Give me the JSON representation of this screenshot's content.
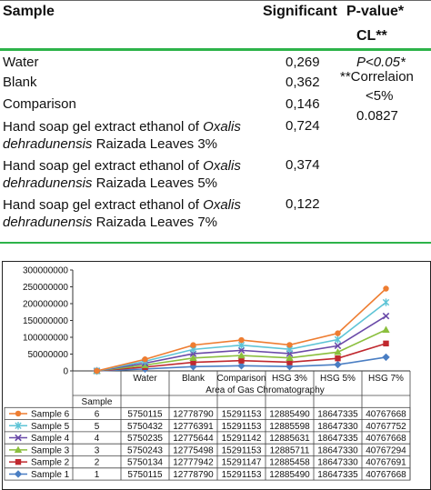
{
  "table": {
    "headers": [
      "Sample",
      "Significant",
      "P-value*",
      "CL**"
    ],
    "rows": [
      {
        "name": [
          "Water"
        ],
        "value": "0,269"
      },
      {
        "name": [
          "Blank"
        ],
        "value": "0,362"
      },
      {
        "name": [
          "Comparison"
        ],
        "value": "0,146"
      },
      {
        "name": [
          "Hand soap gel extract ethanol of ",
          "Oxalis",
          "dehradunensis",
          " Raizada Leaves 3%"
        ],
        "value": "0,724"
      },
      {
        "name": [
          "Hand soap gel extract ethanol of ",
          "Oxalis",
          "dehradunensis",
          " Raizada Leaves 5%"
        ],
        "value": "0,374"
      },
      {
        "name": [
          "Hand soap gel extract ethanol of ",
          "Oxalis",
          "dehradunensis",
          " Raizada Leaves 7%"
        ],
        "value": "0,122"
      }
    ],
    "pvalue_notes": [
      "P<0.05*",
      "**Correlaion",
      "<5%",
      "0.0827"
    ]
  },
  "chart_data": {
    "type": "line",
    "xlabel": "Area of Gas Chromatography",
    "ylabel": "",
    "ylim": [
      0,
      300000000
    ],
    "yticks": [
      "300000000",
      "250000000",
      "200000000",
      "150000000",
      "100000000",
      "50000000",
      "0"
    ],
    "categories": [
      "Sample",
      "Water",
      "Blank",
      "Comparison",
      "HSG 3%",
      "HSG 5%",
      "HSG 7%"
    ],
    "grid": false,
    "legend": "data-table-left",
    "series": [
      {
        "name": "Sample 6",
        "color": "#ee7d31",
        "marker": "circle",
        "table": [
          "6",
          "5750115",
          "12778790",
          "15291153",
          "12885490",
          "18647335",
          "40767668"
        ]
      },
      {
        "name": "Sample 5",
        "color": "#5ec4d6",
        "marker": "asterisk",
        "table": [
          "5",
          "5750432",
          "12776391",
          "15291153",
          "12885598",
          "18647330",
          "40767752"
        ]
      },
      {
        "name": "Sample 4",
        "color": "#6a4aa8",
        "marker": "x",
        "table": [
          "4",
          "5750235",
          "12775644",
          "15291142",
          "12885631",
          "18647335",
          "40767668"
        ]
      },
      {
        "name": "Sample 3",
        "color": "#8bbf3e",
        "marker": "triangle",
        "table": [
          "3",
          "5750243",
          "12775498",
          "15291153",
          "12885711",
          "18647330",
          "40767294"
        ]
      },
      {
        "name": "Sample 2",
        "color": "#c0282e",
        "marker": "square",
        "table": [
          "2",
          "5750134",
          "12777942",
          "15291147",
          "12885458",
          "18647330",
          "40767691"
        ]
      },
      {
        "name": "Sample 1",
        "color": "#4a7ec3",
        "marker": "diamond",
        "table": [
          "1",
          "5750115",
          "12778790",
          "15291153",
          "12885490",
          "18647335",
          "40767668"
        ]
      }
    ]
  }
}
